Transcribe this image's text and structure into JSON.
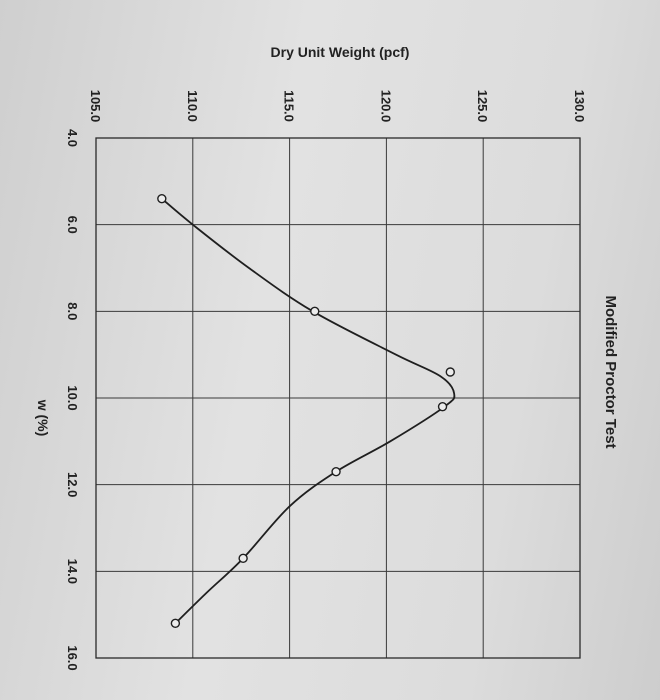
{
  "chart_data": {
    "type": "line",
    "title": "Modified Proctor Test",
    "xlabel": "w (%)",
    "ylabel": "Dry Unit Weight (pcf)",
    "xlim": [
      4.0,
      16.0
    ],
    "ylim": [
      105.0,
      130.0
    ],
    "x_ticks": [
      "4.0",
      "6.0",
      "8.0",
      "10.0",
      "12.0",
      "14.0",
      "16.0"
    ],
    "y_ticks": [
      "105.0",
      "110.0",
      "115.0",
      "120.0",
      "125.0",
      "130.0"
    ],
    "grid": true,
    "series": [
      {
        "points": [
          {
            "x": 5.4,
            "y": 108.4
          },
          {
            "x": 8.0,
            "y": 116.3
          },
          {
            "x": 9.4,
            "y": 123.3
          },
          {
            "x": 10.2,
            "y": 122.9
          },
          {
            "x": 11.7,
            "y": 117.4
          },
          {
            "x": 13.7,
            "y": 112.6
          },
          {
            "x": 15.2,
            "y": 109.1
          }
        ],
        "curve": [
          {
            "x": 5.4,
            "y": 108.4
          },
          {
            "x": 6.0,
            "y": 110.0
          },
          {
            "x": 7.0,
            "y": 112.9
          },
          {
            "x": 8.0,
            "y": 116.2
          },
          {
            "x": 9.0,
            "y": 120.5
          },
          {
            "x": 9.5,
            "y": 122.8
          },
          {
            "x": 9.9,
            "y": 123.5
          },
          {
            "x": 10.2,
            "y": 123.0
          },
          {
            "x": 11.0,
            "y": 120.2
          },
          {
            "x": 11.7,
            "y": 117.4
          },
          {
            "x": 12.5,
            "y": 115.0
          },
          {
            "x": 13.7,
            "y": 112.6
          },
          {
            "x": 14.5,
            "y": 110.7
          },
          {
            "x": 15.2,
            "y": 109.1
          }
        ]
      }
    ]
  }
}
